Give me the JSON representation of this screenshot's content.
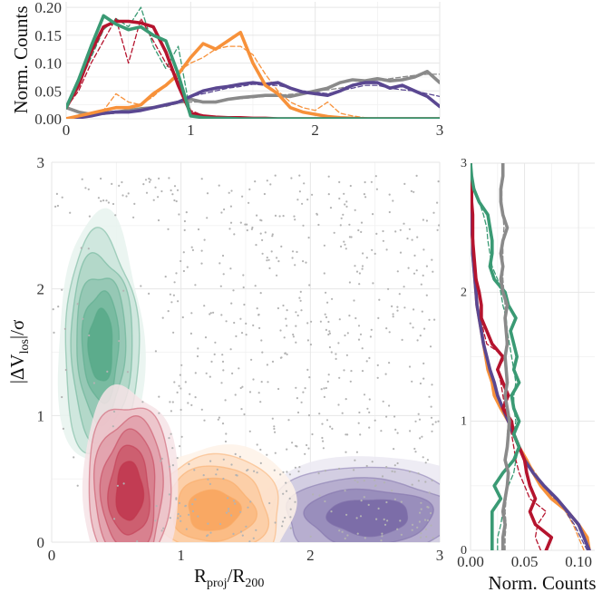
{
  "colors": {
    "green": "#3a9a74",
    "red": "#b5142e",
    "orange": "#f7913a",
    "purple": "#5a4791",
    "gray": "#8a8a8a"
  },
  "chart_data": [
    {
      "id": "top-histogram",
      "type": "line",
      "ylabel": "Norm. Counts",
      "xlim": [
        0,
        3
      ],
      "ylim": [
        0,
        0.21
      ],
      "xticks": [
        "0",
        "1",
        "2",
        "3"
      ],
      "yticks": [
        "0.00",
        "0.05",
        "0.10",
        "0.15",
        "0.20"
      ],
      "grid": true,
      "x": [
        0.0,
        0.1,
        0.2,
        0.3,
        0.4,
        0.5,
        0.6,
        0.7,
        0.8,
        0.9,
        1.0,
        1.1,
        1.2,
        1.3,
        1.4,
        1.5,
        1.6,
        1.7,
        1.8,
        1.9,
        2.0,
        2.1,
        2.2,
        2.3,
        2.4,
        2.5,
        2.6,
        2.7,
        2.8,
        2.9,
        3.0
      ],
      "series": [
        {
          "color": "green",
          "style": "solid",
          "values": [
            0.02,
            0.07,
            0.13,
            0.185,
            0.17,
            0.16,
            0.165,
            0.15,
            0.14,
            0.08,
            0.005,
            0.002,
            0.001,
            0.001,
            0.0,
            0.0,
            0.0,
            0.0,
            0.0,
            0.0,
            0.0,
            0.0,
            0.0,
            0.0,
            0.0,
            0.0,
            0.0,
            0.0,
            0.0,
            0.0,
            0.0
          ]
        },
        {
          "color": "green",
          "style": "dashed",
          "values": [
            0.02,
            0.06,
            0.11,
            0.16,
            0.18,
            0.165,
            0.2,
            0.13,
            0.09,
            0.13,
            0.008,
            0.003,
            0.001,
            0.0,
            0.0,
            0.0,
            0.0,
            0.0,
            0.0,
            0.0,
            0.0,
            0.0,
            0.0,
            0.0,
            0.0,
            0.0,
            0.0,
            0.0,
            0.0,
            0.0,
            0.0
          ]
        },
        {
          "color": "red",
          "style": "solid",
          "values": [
            0.02,
            0.06,
            0.12,
            0.165,
            0.175,
            0.175,
            0.172,
            0.165,
            0.12,
            0.06,
            0.01,
            0.005,
            0.003,
            0.002,
            0.002,
            0.001,
            0.001,
            0.0,
            0.0,
            0.0,
            0.0,
            0.0,
            0.0,
            0.0,
            0.0,
            0.0,
            0.0,
            0.0,
            0.0,
            0.0,
            0.0
          ]
        },
        {
          "color": "red",
          "style": "dashed",
          "values": [
            0.02,
            0.05,
            0.1,
            0.14,
            0.18,
            0.1,
            0.18,
            0.14,
            0.1,
            0.07,
            0.015,
            0.006,
            0.003,
            0.002,
            0.001,
            0.001,
            0.0,
            0.0,
            0.0,
            0.0,
            0.0,
            0.0,
            0.0,
            0.0,
            0.0,
            0.0,
            0.0,
            0.0,
            0.0,
            0.0,
            0.0
          ]
        },
        {
          "color": "orange",
          "style": "solid",
          "values": [
            0.0,
            0.005,
            0.01,
            0.015,
            0.02,
            0.02,
            0.025,
            0.045,
            0.06,
            0.08,
            0.11,
            0.135,
            0.125,
            0.14,
            0.155,
            0.1,
            0.06,
            0.045,
            0.02,
            0.012,
            0.008,
            0.004,
            0.002,
            0.001,
            0.0,
            0.0,
            0.0,
            0.0,
            0.0,
            0.0,
            0.0
          ]
        },
        {
          "color": "orange",
          "style": "dashed",
          "values": [
            0.0,
            0.005,
            0.01,
            0.015,
            0.045,
            0.03,
            0.025,
            0.04,
            0.06,
            0.085,
            0.1,
            0.11,
            0.125,
            0.13,
            0.13,
            0.115,
            0.08,
            0.05,
            0.03,
            0.02,
            0.015,
            0.03,
            0.01,
            0.005,
            0.002,
            0.001,
            0.0,
            0.0,
            0.0,
            0.0,
            0.0
          ]
        },
        {
          "color": "purple",
          "style": "solid",
          "values": [
            0.0,
            0.002,
            0.005,
            0.01,
            0.012,
            0.012,
            0.015,
            0.02,
            0.025,
            0.03,
            0.04,
            0.05,
            0.055,
            0.058,
            0.062,
            0.065,
            0.062,
            0.065,
            0.055,
            0.048,
            0.045,
            0.042,
            0.05,
            0.06,
            0.065,
            0.065,
            0.055,
            0.06,
            0.05,
            0.04,
            0.022
          ]
        },
        {
          "color": "purple",
          "style": "dashed",
          "values": [
            0.0,
            0.002,
            0.005,
            0.008,
            0.01,
            0.012,
            0.015,
            0.02,
            0.025,
            0.03,
            0.04,
            0.045,
            0.05,
            0.055,
            0.058,
            0.062,
            0.06,
            0.06,
            0.055,
            0.05,
            0.048,
            0.045,
            0.05,
            0.055,
            0.06,
            0.06,
            0.055,
            0.052,
            0.05,
            0.045,
            0.04
          ]
        },
        {
          "color": "gray",
          "style": "solid",
          "values": [
            0.02,
            0.012,
            0.008,
            0.01,
            0.012,
            0.015,
            0.018,
            0.02,
            0.025,
            0.03,
            0.035,
            0.03,
            0.03,
            0.035,
            0.038,
            0.04,
            0.042,
            0.042,
            0.04,
            0.045,
            0.05,
            0.055,
            0.065,
            0.07,
            0.068,
            0.072,
            0.068,
            0.07,
            0.075,
            0.085,
            0.065
          ]
        },
        {
          "color": "gray",
          "style": "dashed",
          "values": [
            0.02,
            0.01,
            0.008,
            0.01,
            0.012,
            0.014,
            0.018,
            0.02,
            0.022,
            0.028,
            0.03,
            0.03,
            0.032,
            0.035,
            0.036,
            0.038,
            0.04,
            0.042,
            0.044,
            0.046,
            0.05,
            0.052,
            0.055,
            0.06,
            0.065,
            0.07,
            0.072,
            0.075,
            0.078,
            0.08,
            0.08
          ]
        }
      ]
    },
    {
      "id": "main-density",
      "type": "contour-scatter",
      "xlabel_main": "R",
      "xlabel_sub1": "proj",
      "xlabel_mid": "/R",
      "xlabel_sub2": "200",
      "ylabel_main": "|ΔV",
      "ylabel_sub": "los",
      "ylabel_end": "|/σ",
      "xlim": [
        0,
        3
      ],
      "ylim": [
        0,
        3
      ],
      "xticks": [
        "0",
        "1",
        "2",
        "3"
      ],
      "yticks": [
        "0",
        "1",
        "2",
        "3"
      ],
      "grid": true,
      "populations": [
        {
          "color": "green",
          "center": [
            0.38,
            1.55
          ],
          "spread": [
            0.18,
            0.55
          ],
          "levels": 5
        },
        {
          "color": "red",
          "center": [
            0.6,
            0.4
          ],
          "spread": [
            0.2,
            0.45
          ],
          "levels": 5
        },
        {
          "color": "orange",
          "center": [
            1.25,
            0.25
          ],
          "spread": [
            0.35,
            0.28
          ],
          "levels": 4
        },
        {
          "color": "purple",
          "center": [
            2.45,
            0.2
          ],
          "spread": [
            0.55,
            0.25
          ],
          "levels": 4
        }
      ],
      "scatter_color": "gray",
      "scatter_count": 900
    },
    {
      "id": "right-histogram",
      "type": "line",
      "xlabel": "Norm. Counts",
      "orientation": "horizontal",
      "xlim": [
        0,
        0.115
      ],
      "ylim": [
        0,
        3
      ],
      "xticks": [
        "0.00",
        "0.05",
        "0.10"
      ],
      "yticks": [
        "0",
        "1",
        "2",
        "3"
      ],
      "grid": true,
      "y": [
        0.0,
        0.1,
        0.2,
        0.3,
        0.4,
        0.5,
        0.6,
        0.7,
        0.8,
        0.9,
        1.0,
        1.1,
        1.2,
        1.3,
        1.4,
        1.5,
        1.6,
        1.7,
        1.8,
        1.9,
        2.0,
        2.1,
        2.2,
        2.3,
        2.4,
        2.5,
        2.6,
        2.7,
        2.8,
        2.9,
        3.0
      ],
      "series": [
        {
          "color": "green",
          "style": "solid",
          "values": [
            0.02,
            0.02,
            0.02,
            0.02,
            0.028,
            0.022,
            0.03,
            0.04,
            0.045,
            0.04,
            0.045,
            0.04,
            0.038,
            0.045,
            0.04,
            0.043,
            0.04,
            0.037,
            0.042,
            0.035,
            0.032,
            0.022,
            0.018,
            0.02,
            0.02,
            0.018,
            0.016,
            0.008,
            0.003,
            0.001,
            0.0
          ]
        },
        {
          "color": "green",
          "style": "dashed",
          "values": [
            0.025,
            0.025,
            0.028,
            0.03,
            0.032,
            0.035,
            0.04,
            0.042,
            0.045,
            0.04,
            0.042,
            0.04,
            0.04,
            0.042,
            0.04,
            0.038,
            0.036,
            0.034,
            0.033,
            0.03,
            0.028,
            0.025,
            0.02,
            0.018,
            0.016,
            0.015,
            0.012,
            0.008,
            0.004,
            0.001,
            0.0
          ]
        },
        {
          "color": "red",
          "style": "solid",
          "values": [
            0.07,
            0.075,
            0.06,
            0.055,
            0.06,
            0.055,
            0.052,
            0.05,
            0.045,
            0.04,
            0.038,
            0.03,
            0.035,
            0.03,
            0.025,
            0.03,
            0.02,
            0.015,
            0.01,
            0.01,
            0.008,
            0.005,
            0.004,
            0.003,
            0.002,
            0.002,
            0.002,
            0.001,
            0.001,
            0.0,
            0.0
          ]
        },
        {
          "color": "red",
          "style": "dashed",
          "values": [
            0.065,
            0.06,
            0.062,
            0.07,
            0.055,
            0.05,
            0.045,
            0.042,
            0.04,
            0.038,
            0.035,
            0.032,
            0.03,
            0.028,
            0.025,
            0.032,
            0.015,
            0.012,
            0.01,
            0.01,
            0.008,
            0.006,
            0.004,
            0.003,
            0.002,
            0.002,
            0.001,
            0.001,
            0.0,
            0.0,
            0.0
          ]
        },
        {
          "color": "orange",
          "style": "solid",
          "values": [
            0.11,
            0.108,
            0.1,
            0.09,
            0.075,
            0.065,
            0.058,
            0.052,
            0.045,
            0.04,
            0.035,
            0.028,
            0.022,
            0.02,
            0.016,
            0.014,
            0.012,
            0.01,
            0.008,
            0.006,
            0.005,
            0.004,
            0.003,
            0.002,
            0.002,
            0.001,
            0.001,
            0.0,
            0.0,
            0.0,
            0.0
          ]
        },
        {
          "color": "orange",
          "style": "dashed",
          "values": [
            0.105,
            0.1,
            0.095,
            0.088,
            0.078,
            0.068,
            0.06,
            0.052,
            0.046,
            0.04,
            0.034,
            0.028,
            0.024,
            0.02,
            0.017,
            0.014,
            0.012,
            0.01,
            0.008,
            0.006,
            0.005,
            0.004,
            0.003,
            0.002,
            0.002,
            0.001,
            0.001,
            0.0,
            0.0,
            0.0,
            0.0
          ]
        },
        {
          "color": "purple",
          "style": "solid",
          "values": [
            0.11,
            0.105,
            0.1,
            0.09,
            0.08,
            0.068,
            0.058,
            0.05,
            0.045,
            0.04,
            0.035,
            0.03,
            0.025,
            0.022,
            0.018,
            0.015,
            0.012,
            0.01,
            0.008,
            0.006,
            0.005,
            0.004,
            0.003,
            0.002,
            0.002,
            0.001,
            0.001,
            0.0,
            0.0,
            0.0,
            0.0
          ]
        },
        {
          "color": "purple",
          "style": "dashed",
          "values": [
            0.108,
            0.102,
            0.096,
            0.088,
            0.078,
            0.066,
            0.058,
            0.05,
            0.044,
            0.04,
            0.035,
            0.03,
            0.026,
            0.022,
            0.018,
            0.015,
            0.012,
            0.01,
            0.008,
            0.006,
            0.005,
            0.004,
            0.003,
            0.002,
            0.002,
            0.001,
            0.001,
            0.0,
            0.0,
            0.0,
            0.0
          ]
        },
        {
          "color": "gray",
          "style": "solid",
          "values": [
            0.03,
            0.03,
            0.032,
            0.03,
            0.032,
            0.034,
            0.035,
            0.032,
            0.034,
            0.035,
            0.036,
            0.034,
            0.032,
            0.034,
            0.033,
            0.032,
            0.034,
            0.033,
            0.032,
            0.034,
            0.03,
            0.028,
            0.03,
            0.028,
            0.03,
            0.034,
            0.03,
            0.028,
            0.028,
            0.03,
            0.03
          ]
        },
        {
          "color": "gray",
          "style": "dashed",
          "values": [
            0.032,
            0.032,
            0.033,
            0.032,
            0.033,
            0.034,
            0.034,
            0.033,
            0.034,
            0.034,
            0.035,
            0.034,
            0.033,
            0.033,
            0.033,
            0.032,
            0.033,
            0.033,
            0.032,
            0.032,
            0.031,
            0.03,
            0.03,
            0.03,
            0.03,
            0.031,
            0.03,
            0.029,
            0.029,
            0.03,
            0.03
          ]
        }
      ]
    }
  ]
}
